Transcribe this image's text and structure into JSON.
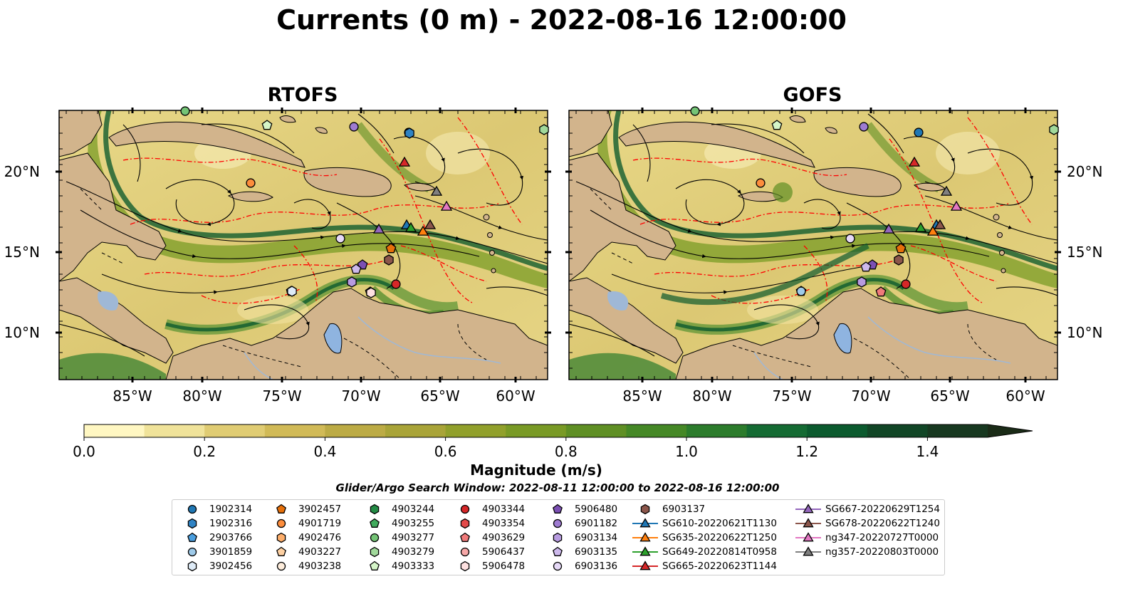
{
  "title": "Currents (0 m) - 2022-08-16 12:00:00",
  "maps": [
    {
      "title": "RTOFS"
    },
    {
      "title": "GOFS"
    }
  ],
  "axes": {
    "lon_ticks": [
      "85°W",
      "80°W",
      "75°W",
      "70°W",
      "65°W",
      "60°W"
    ],
    "lat_ticks": [
      "20°N",
      "15°N",
      "10°N"
    ]
  },
  "colorbar": {
    "label": "Magnitude (m/s)",
    "range": [
      0.0,
      1.5
    ],
    "step": 0.1,
    "extend": "max",
    "tick_labels": [
      "0.0",
      "0.2",
      "0.4",
      "0.6",
      "0.8",
      "1.0",
      "1.2",
      "1.4"
    ],
    "colors": [
      "#fff7c2",
      "#f0e39a",
      "#e0cc73",
      "#d1ba57",
      "#bcab45",
      "#a9a438",
      "#91a02b",
      "#799a25",
      "#5f8f24",
      "#458826",
      "#2c7c2c",
      "#146b33",
      "#0b5a2e",
      "#114626",
      "#173820",
      "#1a2b17"
    ]
  },
  "search_window": "Glider/Argo Search Window: 2022-08-11 12:00:00 to 2022-08-16 12:00:00",
  "colors": {
    "land": "#d2b48c",
    "lakes": "#8fb4e0",
    "rivers": "#9fb8d6",
    "contour_red": "#ff0000"
  },
  "legend": [
    {
      "label": "1902314",
      "marker": "circle",
      "color": "#1f77b4"
    },
    {
      "label": "1902316",
      "marker": "hexagon",
      "color": "#2f83c4"
    },
    {
      "label": "2903766",
      "marker": "pentagon",
      "color": "#4a9ede"
    },
    {
      "label": "3901859",
      "marker": "circle",
      "color": "#9ecae9"
    },
    {
      "label": "3902456",
      "marker": "hexagon",
      "color": "#deebf7"
    },
    {
      "label": "3902457",
      "marker": "pentagon",
      "color": "#e6700a"
    },
    {
      "label": "4901719",
      "marker": "circle",
      "color": "#fd8d3c"
    },
    {
      "label": "4902476",
      "marker": "hexagon",
      "color": "#fdae6b"
    },
    {
      "label": "4903227",
      "marker": "pentagon",
      "color": "#fdd0a2"
    },
    {
      "label": "4903238",
      "marker": "circle",
      "color": "#feeddc"
    },
    {
      "label": "4903244",
      "marker": "hexagon",
      "color": "#238b45"
    },
    {
      "label": "4903255",
      "marker": "pentagon",
      "color": "#41ab5d"
    },
    {
      "label": "4903277",
      "marker": "circle",
      "color": "#74c476"
    },
    {
      "label": "4903279",
      "marker": "hexagon",
      "color": "#a1d99b"
    },
    {
      "label": "4903333",
      "marker": "pentagon",
      "color": "#d5f5c8"
    },
    {
      "label": "4903344",
      "marker": "circle",
      "color": "#d62728"
    },
    {
      "label": "4903354",
      "marker": "hexagon",
      "color": "#e34a4a"
    },
    {
      "label": "4903629",
      "marker": "pentagon",
      "color": "#f07a7a"
    },
    {
      "label": "5906437",
      "marker": "circle",
      "color": "#f7a8a8"
    },
    {
      "label": "5906478",
      "marker": "hexagon",
      "color": "#fde0e0"
    },
    {
      "label": "5906480",
      "marker": "pentagon",
      "color": "#7b4fb3"
    },
    {
      "label": "6901182",
      "marker": "circle",
      "color": "#9e7bd1"
    },
    {
      "label": "6903134",
      "marker": "hexagon",
      "color": "#b79be0"
    },
    {
      "label": "6903135",
      "marker": "pentagon",
      "color": "#cdb9ec"
    },
    {
      "label": "6903136",
      "marker": "circle",
      "color": "#e6d9f7"
    },
    {
      "label": "6903137",
      "marker": "hexagon",
      "color": "#8c564b"
    },
    {
      "label": "SG610-20220621T1130",
      "marker": "triangle",
      "color": "#1f77b4"
    },
    {
      "label": "SG635-20220622T1250",
      "marker": "triangle",
      "color": "#ff7f0e"
    },
    {
      "label": "SG649-20220814T0958",
      "marker": "triangle",
      "color": "#2ca02c"
    },
    {
      "label": "SG665-20220623T1144",
      "marker": "triangle",
      "color": "#d62728"
    },
    {
      "label": "SG667-20220629T1254",
      "marker": "triangle",
      "color": "#9467bd"
    },
    {
      "label": "SG678-20220622T1240",
      "marker": "triangle",
      "color": "#8c564b"
    },
    {
      "label": "ng347-20220727T0000",
      "marker": "triangle",
      "color": "#e377c2"
    },
    {
      "label": "ng357-20220803T0000",
      "marker": "triangle",
      "color": "#7f7f7f"
    }
  ]
}
